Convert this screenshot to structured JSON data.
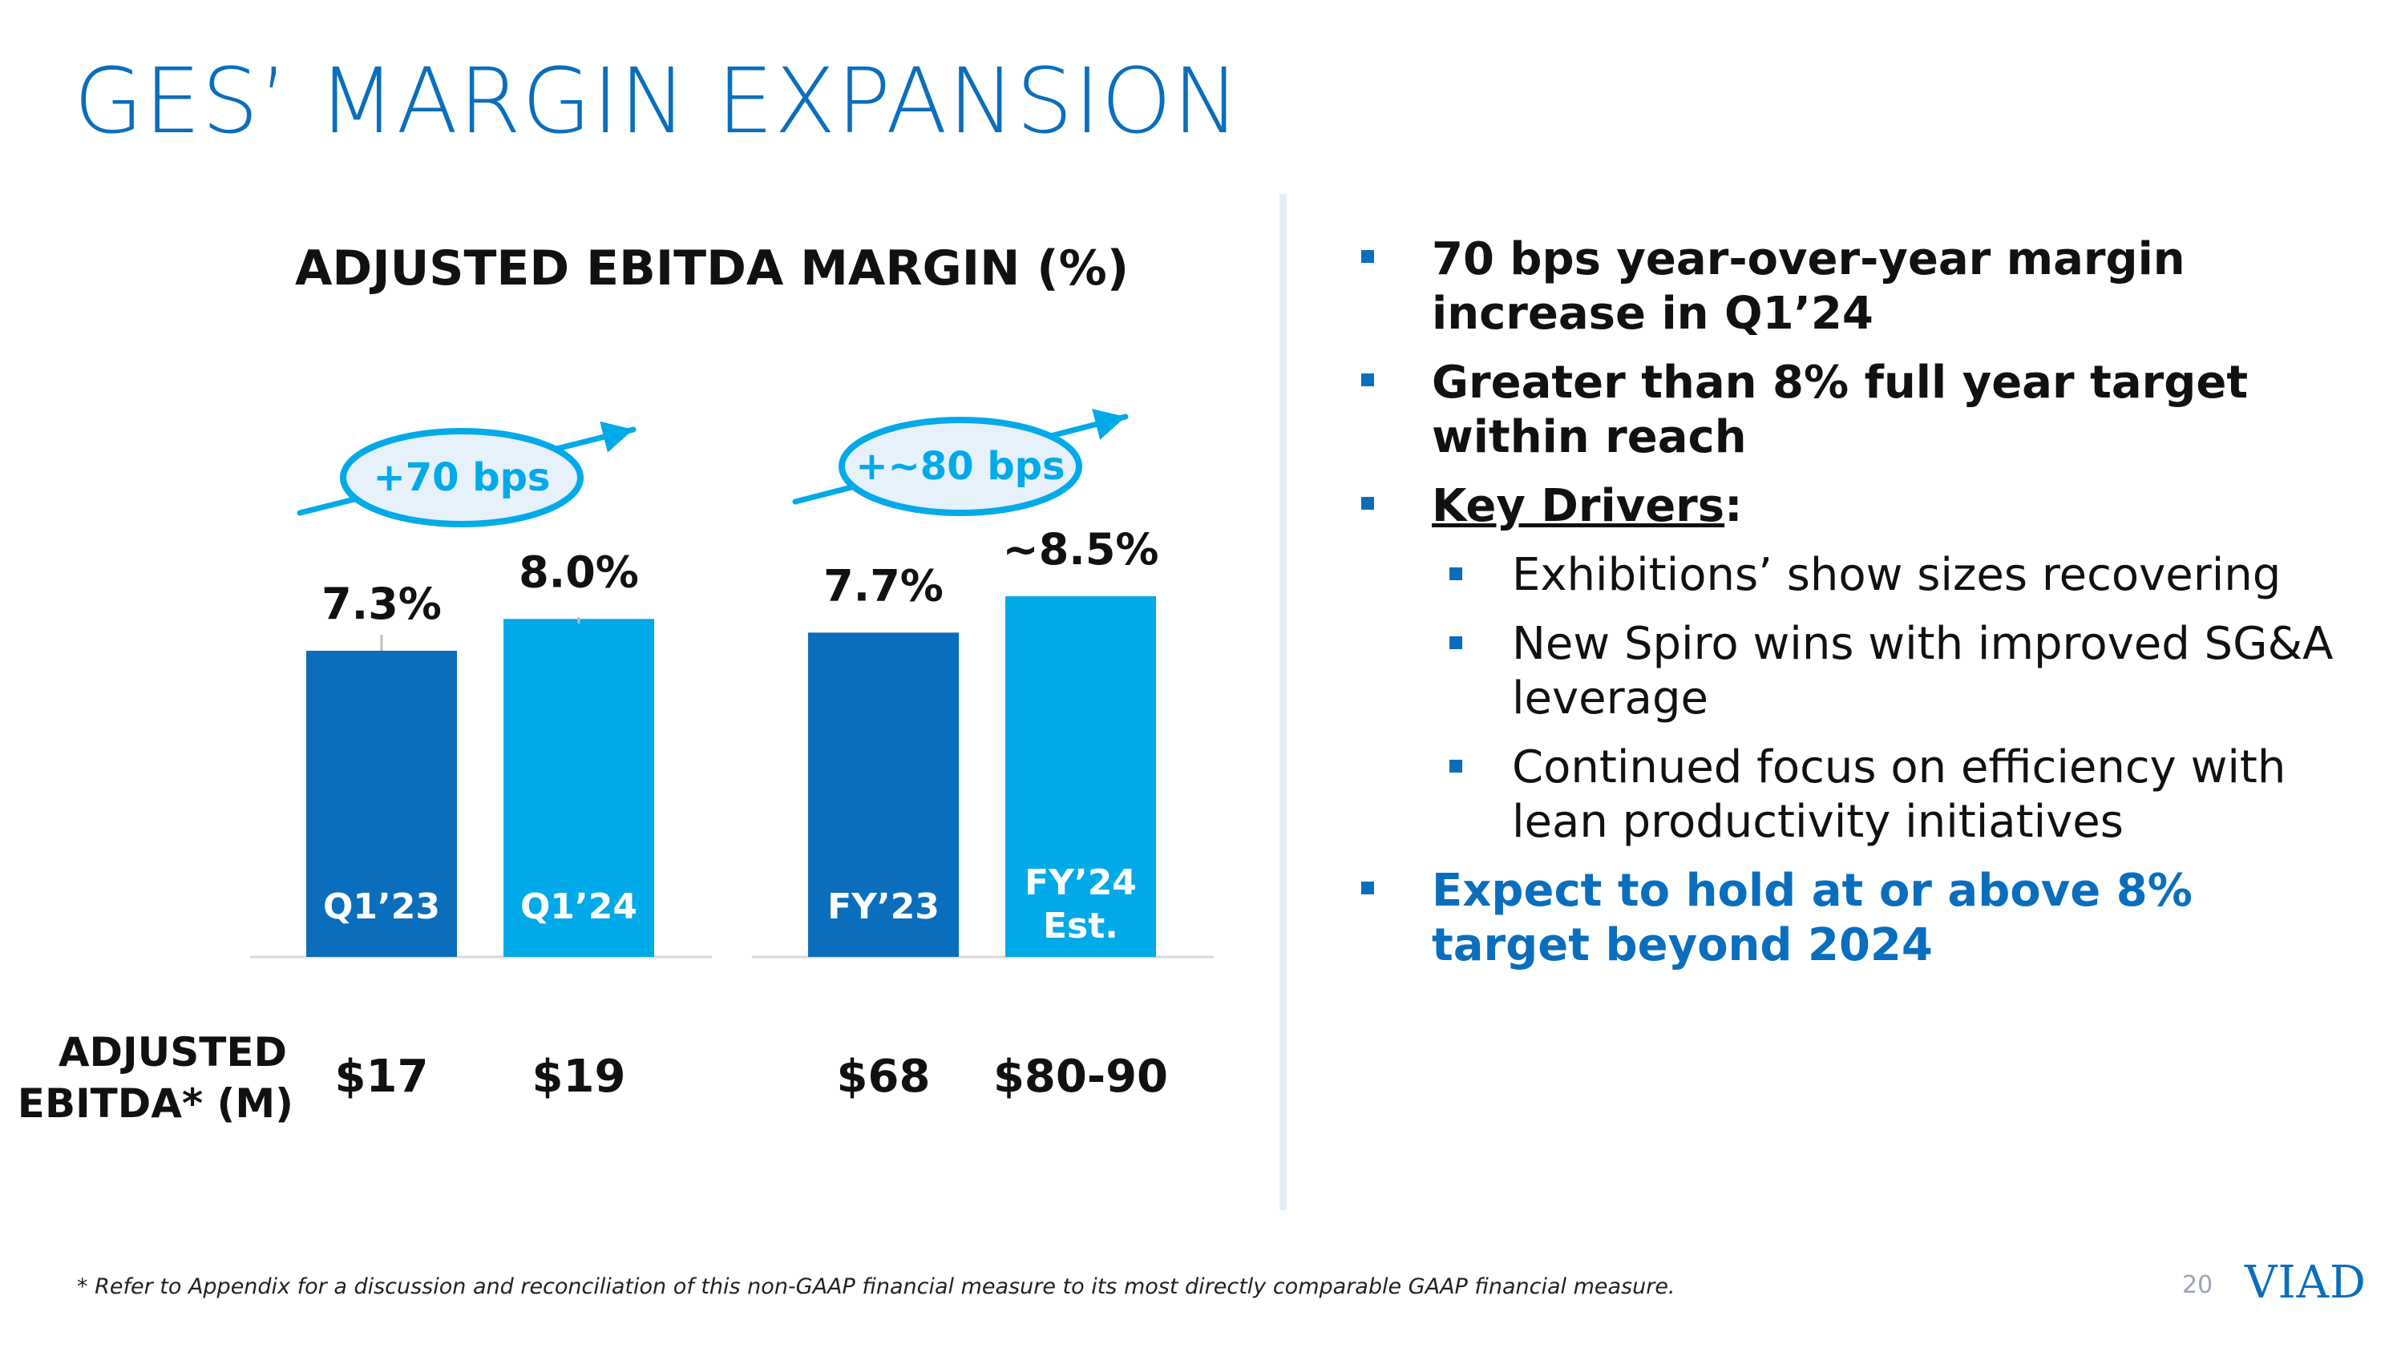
{
  "title": "GES’ MARGIN EXPANSION",
  "chart_data": {
    "type": "bar",
    "title": "ADJUSTED EBITDA MARGIN (%)",
    "unit": "%",
    "ylim": [
      0,
      10
    ],
    "bars": [
      {
        "category": "Q1’23",
        "value": 7.3,
        "label": "7.3%",
        "ebitda": "$17",
        "color": "#0A6EBD",
        "group": 0
      },
      {
        "category": "Q1’24",
        "value": 8.0,
        "label": "8.0%",
        "ebitda": "$19",
        "color": "#00A9E8",
        "group": 0
      },
      {
        "category": "FY’23",
        "value": 7.7,
        "label": "7.7%",
        "ebitda": "$68",
        "color": "#0A6EBD",
        "group": 1
      },
      {
        "category": "FY’24 Est.",
        "value": 8.5,
        "label": "~8.5%",
        "ebitda": "$80-90",
        "color": "#00A9E8",
        "group": 1
      }
    ],
    "annotations": [
      "+70 bps",
      "+~80 bps"
    ],
    "row_label": "ADJUSTED EBITDA* (M)"
  },
  "bullets": [
    {
      "text": "70 bps year-over-year margin increase in Q1’24"
    },
    {
      "text": "Greater than 8% full year target within reach"
    },
    {
      "text": "Key Drivers",
      "suffix": ":"
    },
    {
      "sub": "Exhibitions’ show sizes recovering"
    },
    {
      "sub": "New Spiro wins with improved SG&A leverage"
    },
    {
      "sub": "Continued focus on efficiency with lean productivity initiatives"
    },
    {
      "text": "Expect to hold at or above 8% target beyond 2024"
    }
  ],
  "footnote": "* Refer to Appendix for a discussion and reconciliation of this non-GAAP financial measure to its most directly comparable GAAP financial measure.",
  "page_number": "20",
  "logo_text": "VIAD",
  "colors": {
    "dark_blue": "#0A6EBD",
    "light_blue": "#00A9E8",
    "bubble_fill": "#E6F1FB"
  }
}
